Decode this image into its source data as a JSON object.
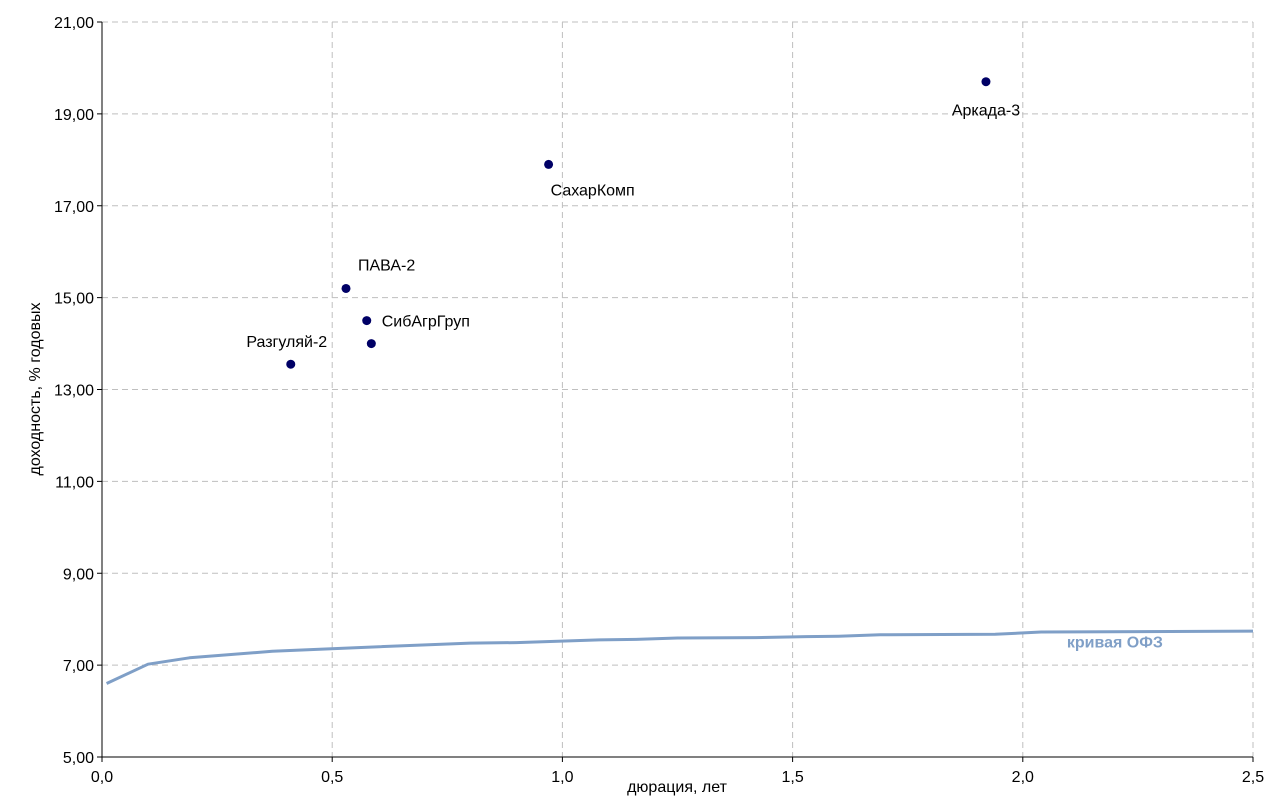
{
  "chart_data": {
    "type": "scatter",
    "xlabel": "дюрация, лет",
    "ylabel": "доходность, % годовых",
    "xlim": [
      0,
      2.5
    ],
    "ylim": [
      5,
      21
    ],
    "x_ticks": [
      0,
      0.5,
      1.0,
      1.5,
      2.0,
      2.5
    ],
    "x_tick_labels": [
      "0,0",
      "0,5",
      "1,0",
      "1,5",
      "2,0",
      "2,5"
    ],
    "y_ticks": [
      5,
      7,
      9,
      11,
      13,
      15,
      17,
      19,
      21
    ],
    "y_tick_labels": [
      "5,00",
      "7,00",
      "9,00",
      "11,00",
      "13,00",
      "15,00",
      "17,00",
      "19,00",
      "21,00"
    ],
    "grid": true,
    "points_color": "#000066",
    "points": [
      {
        "label": "Разгуляй-2",
        "x": 0.41,
        "y": 13.55
      },
      {
        "label": "ПАВА-2",
        "x": 0.53,
        "y": 15.2
      },
      {
        "label": "СибАгрГруп",
        "x": 0.575,
        "y": 14.5
      },
      {
        "label": "",
        "x": 0.585,
        "y": 14.0
      },
      {
        "label": "СахарКомп",
        "x": 0.97,
        "y": 17.9
      },
      {
        "label": "Аркада-3",
        "x": 1.92,
        "y": 19.7
      }
    ],
    "curve": {
      "name": "кривая ОФЗ",
      "color": "#7f9fc7",
      "x": [
        0.01,
        0.1,
        0.19,
        0.37,
        0.55,
        0.8,
        0.9,
        1.08,
        1.16,
        1.25,
        1.42,
        1.53,
        1.6,
        1.69,
        1.94,
        2.04,
        2.5
      ],
      "y": [
        6.6,
        7.02,
        7.16,
        7.3,
        7.38,
        7.48,
        7.49,
        7.55,
        7.56,
        7.59,
        7.6,
        7.62,
        7.63,
        7.66,
        7.67,
        7.72,
        7.74
      ]
    }
  }
}
